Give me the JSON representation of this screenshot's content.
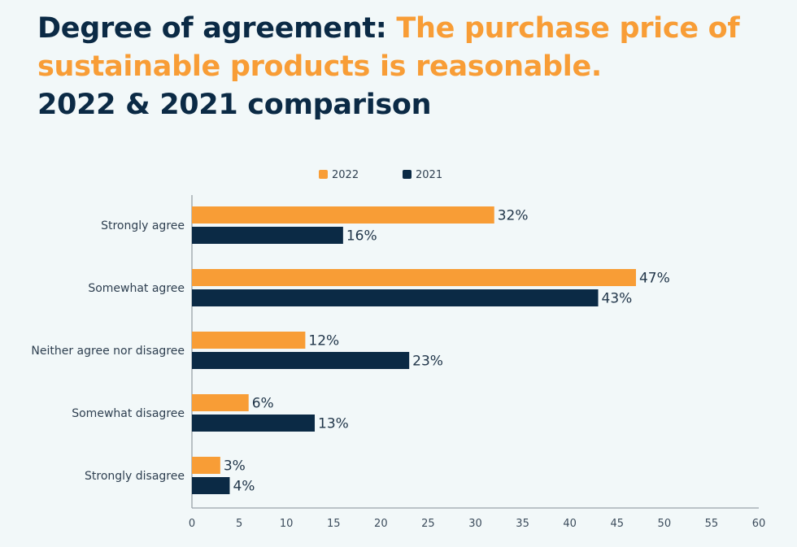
{
  "title": {
    "part1": "Degree of agreement: ",
    "part2_highlight": "The purchase price of sustainable products is reasonable.",
    "part3": "2022 & 2021 comparison"
  },
  "chart_data": {
    "type": "bar",
    "orientation": "horizontal",
    "categories": [
      "Strongly agree",
      "Somewhat agree",
      "Neither agree nor disagree",
      "Somewhat disagree",
      "Strongly disagree"
    ],
    "series": [
      {
        "name": "2022",
        "color": "#f89d36",
        "values": [
          32,
          47,
          12,
          6,
          3
        ]
      },
      {
        "name": "2021",
        "color": "#0b2a45",
        "values": [
          16,
          43,
          23,
          13,
          4
        ]
      }
    ],
    "value_suffix": "%",
    "xlim": [
      0,
      60
    ],
    "xticks": [
      0,
      5,
      10,
      15,
      20,
      25,
      30,
      35,
      40,
      45,
      50,
      55,
      60
    ],
    "grid": false,
    "legend_placement": "top-center",
    "highlight_color": "#f89d36",
    "text_color": "#0b2a45"
  }
}
